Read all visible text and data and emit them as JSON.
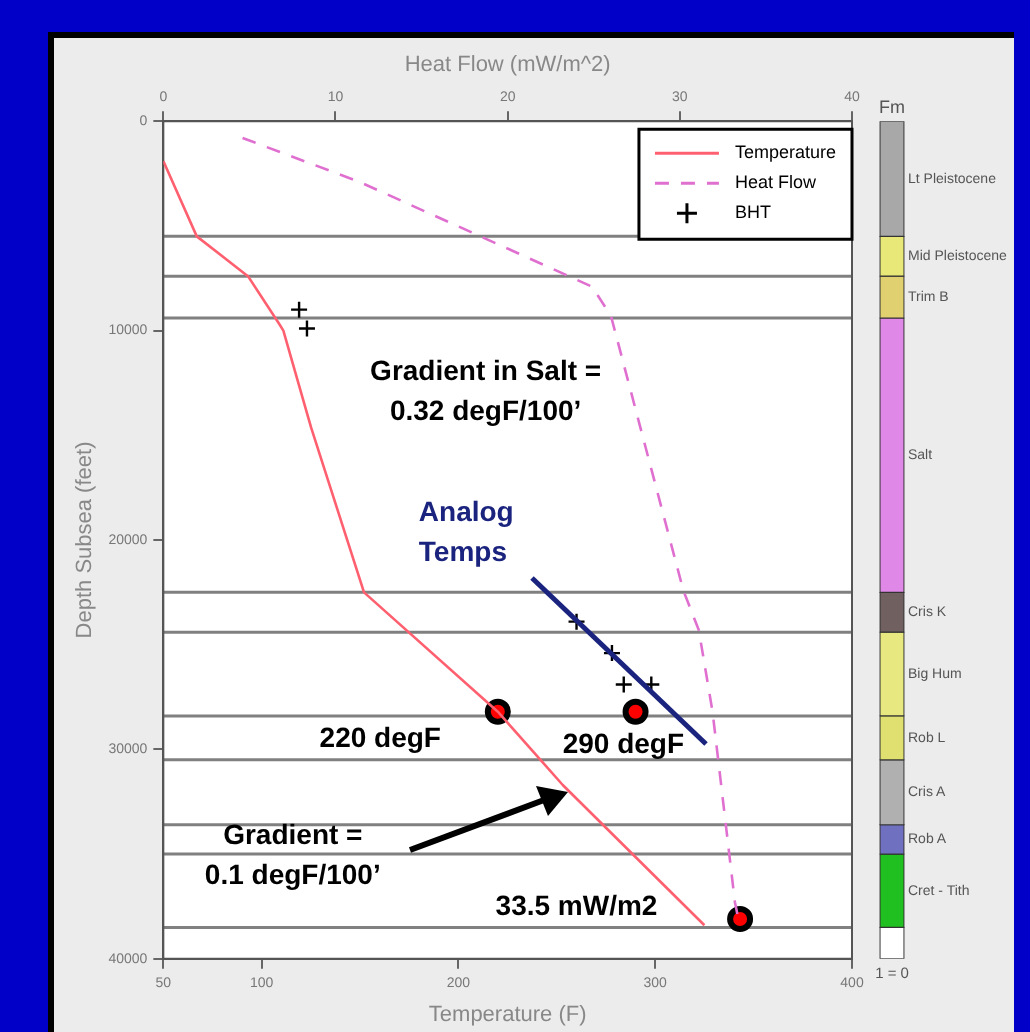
{
  "chart_data": [
    {
      "type": "line",
      "xlabel": "Temperature (F)",
      "x2label": "Heat Flow (mW/m^2)",
      "ylabel": "Depth Subsea (feet)",
      "xlim": [
        50,
        400
      ],
      "xticks": [
        50,
        100,
        200,
        300,
        400
      ],
      "x2lim": [
        0,
        40
      ],
      "x2ticks": [
        0,
        10,
        20,
        30,
        40
      ],
      "ylim": [
        40000,
        0
      ],
      "yticks": [
        0,
        10000,
        20000,
        30000,
        40000
      ],
      "grid": false,
      "legend": "top right",
      "series": [
        {
          "name": "Temperature",
          "marker": "none",
          "line_style": "solid",
          "color": "#ff6070",
          "x": [
            50,
            67,
            93,
            109,
            111,
            125,
            152,
            220,
            253,
            325
          ],
          "values": [
            1900,
            5500,
            7400,
            9700,
            10000,
            14600,
            22500,
            28200,
            31700,
            38400
          ]
        },
        {
          "name": "Heat Flow",
          "marker": "none",
          "line_style": "dashed",
          "axis": "x2",
          "color": "#e070d0",
          "x": [
            4.6,
            11.4,
            24.9,
            26,
            30.2,
            31.1,
            31.9,
            33.2,
            33.4
          ],
          "values": [
            800,
            2900,
            7900,
            9300,
            22400,
            24300,
            28200,
            37300,
            38100
          ]
        },
        {
          "name": "BHT",
          "type": "scatter",
          "marker": "cross",
          "color": "#000000",
          "x": [
            119,
            123,
            260,
            278,
            284,
            298
          ],
          "values": [
            9000,
            9900,
            23900,
            25400,
            26900,
            26900
          ]
        },
        {
          "type": "scatter",
          "marker": "circle",
          "color": "#ff0000",
          "x": [
            220,
            290
          ],
          "values": [
            28200,
            28200
          ]
        },
        {
          "type": "scatter",
          "marker": "circle",
          "axis": "x2",
          "color": "#ff0000",
          "x": [
            33.5
          ],
          "values": [
            38100
          ]
        }
      ],
      "ref_lines": [
        {
          "axis": "y",
          "value": 5500,
          "color": "#808080"
        },
        {
          "axis": "y",
          "value": 7400,
          "color": "#808080"
        },
        {
          "axis": "y",
          "value": 9400,
          "color": "#808080"
        },
        {
          "axis": "y",
          "value": 22500,
          "color": "#808080"
        },
        {
          "axis": "y",
          "value": 24400,
          "color": "#808080"
        },
        {
          "axis": "y",
          "value": 28400,
          "color": "#808080"
        },
        {
          "axis": "y",
          "value": 30500,
          "color": "#808080"
        },
        {
          "axis": "y",
          "value": 33600,
          "color": "#808080"
        },
        {
          "axis": "y",
          "value": 35000,
          "color": "#808080"
        },
        {
          "axis": "y",
          "value": 38500,
          "color": "#808080"
        }
      ],
      "annotations": [
        "Gradient in Salt =\n0.32 degF/100’",
        "Analog\nTemps",
        "220 degF",
        "290 degF",
        "Gradient =\n0.1 degF/100’",
        "33.5 mW/m2"
      ]
    },
    {
      "type": "bar",
      "stacked": true,
      "title": "Fm",
      "categories": [
        null
      ],
      "ylim": [
        40000,
        0
      ],
      "tick_labels": false,
      "series": [
        {
          "name": "Lt Pleistocene",
          "color": "#a8a8a8",
          "values": [
            5500
          ]
        },
        {
          "name": "Mid Pleistocene",
          "color": "#e8e878",
          "values": [
            1900
          ]
        },
        {
          "name": "Trim B",
          "color": "#e0d070",
          "values": [
            2000
          ]
        },
        {
          "name": "Salt",
          "color": "#e088e8",
          "values": [
            13100
          ]
        },
        {
          "name": "Cris K",
          "color": "#706060",
          "values": [
            1900
          ]
        },
        {
          "name": "Big Hum",
          "color": "#e8e880",
          "values": [
            4000
          ]
        },
        {
          "name": "Rob L",
          "color": "#e0e070",
          "values": [
            2100
          ]
        },
        {
          "name": "Cris A",
          "color": "#b0b0b0",
          "values": [
            3100
          ]
        },
        {
          "name": "Rob A",
          "color": "#7070c0",
          "values": [
            1400
          ]
        },
        {
          "name": "Cret - Tith",
          "color": "#20c020",
          "values": [
            3500
          ]
        },
        {
          "color": "#ffffff",
          "values": [
            1500
          ]
        }
      ],
      "annotations": [
        "1 = 0"
      ]
    }
  ]
}
